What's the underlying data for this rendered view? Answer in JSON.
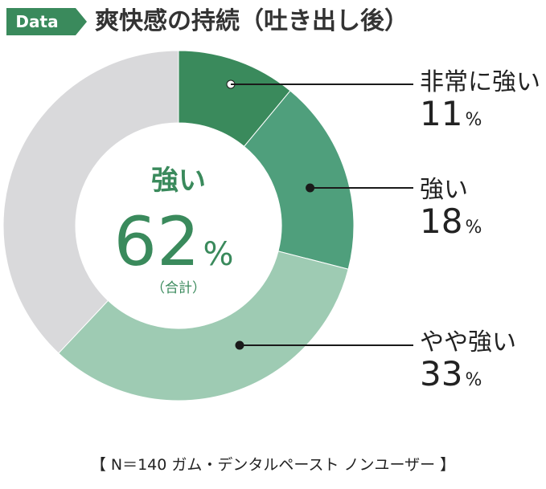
{
  "header": {
    "tag": "Data",
    "title": "爽快感の持続（吐き出し後）"
  },
  "chart_data": {
    "type": "pie",
    "style": "donut",
    "title": "爽快感の持続（吐き出し後）",
    "slices": [
      {
        "label": "非常に強い",
        "value": 11,
        "display": "11",
        "color": "#3a8a5c"
      },
      {
        "label": "強い",
        "value": 18,
        "display": "18",
        "color": "#4f9f7c"
      },
      {
        "label": "やや強い",
        "value": 33,
        "display": "33",
        "color": "#9ecbb3"
      },
      {
        "label": "",
        "value": 38,
        "display": "",
        "color": "#d9d9db"
      }
    ],
    "unit": "%",
    "center": {
      "label": "強い",
      "value": "62",
      "unit": "%",
      "note": "（合計）"
    }
  },
  "footnote": "【 N＝140 ガム・デンタルペースト ノンユーザー 】"
}
